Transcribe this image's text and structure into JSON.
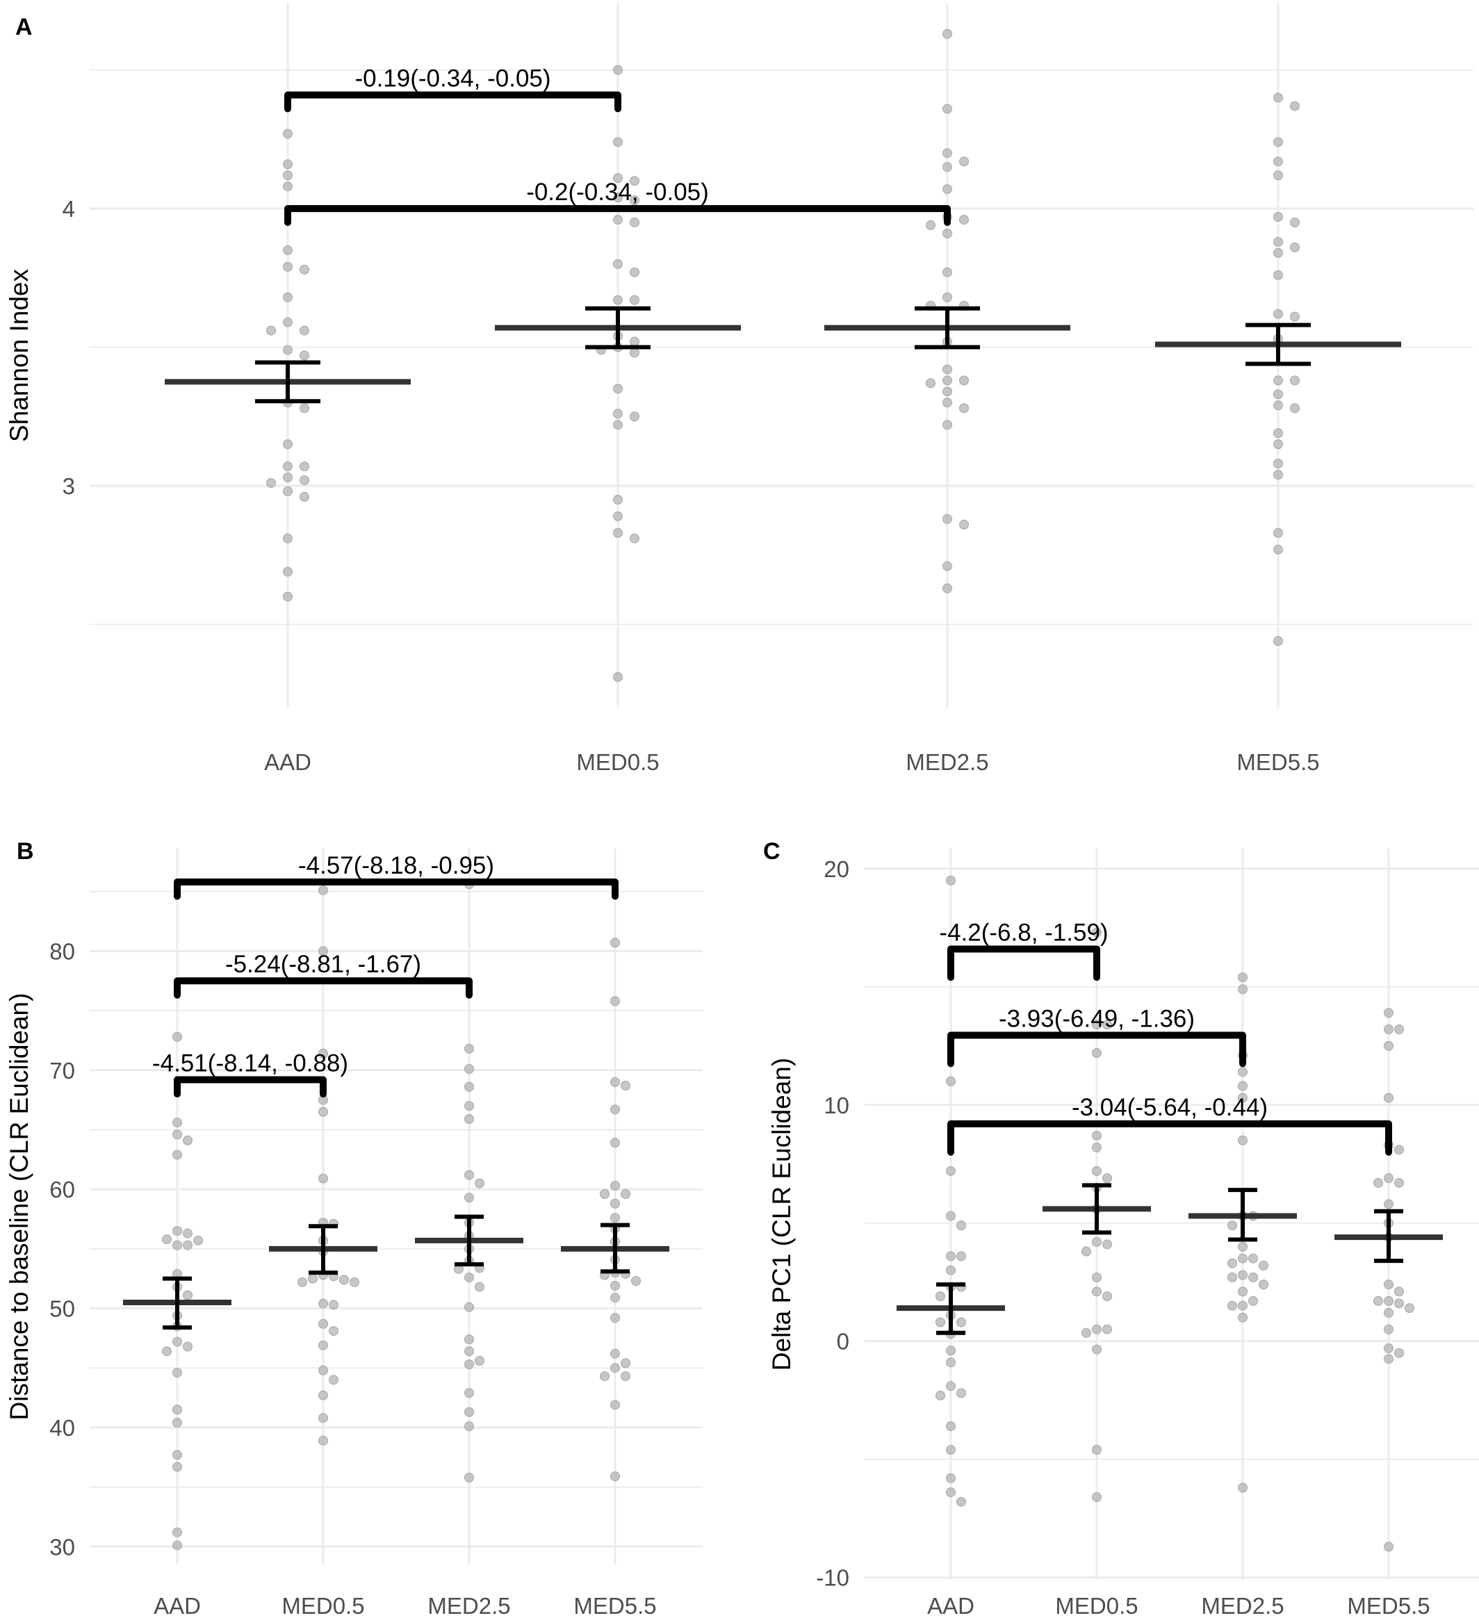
{
  "chart_data": [
    {
      "panel": "A",
      "type": "scatter",
      "ylabel": "Shannon Index",
      "categories": [
        "AAD",
        "MED0.5",
        "MED2.5",
        "MED5.5"
      ],
      "ylim": [
        2.2,
        4.74
      ],
      "yticks": [
        3,
        4
      ],
      "ygrid_minor": [
        2.5,
        3.5,
        4.5
      ],
      "grid": true,
      "point_color": "#b3b3b3",
      "groups": [
        {
          "category": "AAD",
          "mean": 3.375,
          "ci": [
            3.305,
            3.445
          ],
          "values": [
            4.27,
            4.16,
            4.12,
            4.08,
            3.85,
            3.79,
            3.78,
            3.68,
            3.59,
            3.56,
            3.56,
            3.49,
            3.47,
            3.3,
            3.28,
            3.15,
            3.07,
            3.07,
            3.03,
            3.02,
            3.01,
            2.98,
            2.96,
            2.81,
            2.69,
            2.6
          ]
        },
        {
          "category": "MED0.5",
          "mean": 3.57,
          "ci": [
            3.5,
            3.64
          ],
          "values": [
            4.5,
            4.24,
            4.11,
            4.1,
            4.04,
            4.03,
            3.96,
            3.95,
            3.8,
            3.77,
            3.67,
            3.67,
            3.54,
            3.52,
            3.5,
            3.49,
            3.48,
            3.35,
            3.26,
            3.25,
            3.22,
            2.95,
            2.89,
            2.83,
            2.81,
            2.31
          ]
        },
        {
          "category": "MED2.5",
          "mean": 3.57,
          "ci": [
            3.5,
            3.64
          ],
          "values": [
            4.63,
            4.36,
            4.2,
            4.17,
            4.15,
            4.07,
            3.97,
            3.96,
            3.94,
            3.91,
            3.77,
            3.68,
            3.65,
            3.65,
            3.52,
            3.42,
            3.38,
            3.38,
            3.37,
            3.34,
            3.3,
            3.28,
            3.22,
            2.88,
            2.86,
            2.71,
            2.63
          ]
        },
        {
          "category": "MED5.5",
          "mean": 3.51,
          "ci": [
            3.44,
            3.58
          ],
          "values": [
            4.4,
            4.37,
            4.24,
            4.17,
            4.12,
            3.97,
            3.95,
            3.88,
            3.86,
            3.84,
            3.76,
            3.62,
            3.61,
            3.53,
            3.38,
            3.38,
            3.33,
            3.29,
            3.28,
            3.19,
            3.15,
            3.08,
            3.04,
            2.83,
            2.77,
            2.44
          ]
        }
      ],
      "comparisons": [
        {
          "from": "AAD",
          "to": "MED0.5",
          "y": 4.41,
          "label": "-0.19(-0.34, -0.05)"
        },
        {
          "from": "AAD",
          "to": "MED2.5",
          "y": 4.0,
          "label": "-0.2(-0.34, -0.05)"
        }
      ]
    },
    {
      "panel": "B",
      "type": "scatter",
      "ylabel": "Distance to baseline (CLR Euclidean)",
      "categories": [
        "AAD",
        "MED0.5",
        "MED2.5",
        "MED5.5"
      ],
      "ylim": [
        28.5,
        88.6
      ],
      "yticks": [
        30,
        40,
        50,
        60,
        70,
        80
      ],
      "ygrid_minor": [
        35,
        45,
        55,
        65,
        75,
        85
      ],
      "grid": true,
      "point_color": "#b3b3b3",
      "groups": [
        {
          "category": "AAD",
          "mean": 50.5,
          "ci": [
            48.4,
            52.5
          ],
          "values": [
            72.8,
            65.6,
            64.6,
            64.1,
            62.9,
            56.5,
            56.3,
            55.8,
            55.7,
            55.3,
            55.3,
            52.9,
            51.8,
            51.1,
            49.4,
            48.5,
            47.2,
            46.8,
            46.4,
            44.6,
            41.5,
            40.4,
            37.7,
            36.7,
            31.2,
            30.1
          ]
        },
        {
          "category": "MED0.5",
          "mean": 55.0,
          "ci": [
            53.0,
            56.9
          ],
          "values": [
            85.1,
            80.0,
            71.4,
            67.5,
            66.5,
            60.9,
            57.2,
            57.1,
            55.7,
            54.8,
            52.8,
            52.7,
            52.5,
            52.4,
            52.2,
            52.2,
            50.4,
            50.3,
            48.7,
            48.1,
            46.9,
            44.8,
            44.0,
            42.7,
            40.8,
            38.9
          ]
        },
        {
          "category": "MED2.5",
          "mean": 55.7,
          "ci": [
            53.7,
            57.7
          ],
          "values": [
            85.6,
            71.8,
            70.1,
            68.6,
            67.0,
            65.9,
            61.2,
            60.5,
            59.3,
            57.2,
            56.1,
            55.0,
            54.0,
            53.4,
            53.3,
            52.6,
            51.8,
            50.1,
            47.4,
            46.4,
            45.6,
            45.3,
            42.9,
            41.3,
            40.1,
            35.8
          ]
        },
        {
          "category": "MED5.5",
          "mean": 55.0,
          "ci": [
            53.1,
            57.0
          ],
          "values": [
            80.7,
            75.8,
            69.0,
            68.7,
            66.7,
            63.9,
            60.3,
            59.6,
            59.6,
            58.8,
            57.6,
            56.7,
            55.6,
            54.1,
            53.0,
            52.9,
            52.8,
            52.3,
            51.9,
            50.9,
            49.2,
            46.2,
            45.4,
            45.0,
            44.3,
            44.3,
            41.9,
            35.9
          ]
        }
      ],
      "comparisons": [
        {
          "from": "AAD",
          "to": "MED5.5",
          "y": 85.8,
          "label": "-4.57(-8.18, -0.95)"
        },
        {
          "from": "AAD",
          "to": "MED2.5",
          "y": 77.5,
          "label": "-5.24(-8.81, -1.67)"
        },
        {
          "from": "AAD",
          "to": "MED0.5",
          "y": 69.2,
          "label": "-4.51(-8.14, -0.88)"
        }
      ]
    },
    {
      "panel": "C",
      "type": "scatter",
      "ylabel": "Delta PC1 (CLR Euclidean)",
      "categories": [
        "AAD",
        "MED0.5",
        "MED2.5",
        "MED5.5"
      ],
      "ylim": [
        -10.1,
        20.85
      ],
      "yticks": [
        -10,
        0,
        10,
        20
      ],
      "ygrid_minor": [
        -5,
        5,
        15
      ],
      "grid": true,
      "point_color": "#b3b3b3",
      "groups": [
        {
          "category": "AAD",
          "mean": 1.4,
          "ci": [
            0.35,
            2.4
          ],
          "values": [
            19.5,
            11.0,
            7.2,
            5.3,
            4.9,
            3.6,
            3.6,
            3.0,
            2.3,
            2.3,
            1.9,
            1.1,
            0.8,
            0.8,
            0.3,
            -0.4,
            -0.9,
            -1.9,
            -2.2,
            -2.3,
            -3.6,
            -4.6,
            -5.8,
            -6.4,
            -6.8
          ]
        },
        {
          "category": "MED0.5",
          "mean": 5.6,
          "ci": [
            4.6,
            6.6
          ],
          "values": [
            17.3,
            13.4,
            13.4,
            12.2,
            8.7,
            8.2,
            7.2,
            6.9,
            6.5,
            5.6,
            4.2,
            4.1,
            3.8,
            2.7,
            2.1,
            1.9,
            0.5,
            0.5,
            0.35,
            -0.35,
            -4.6,
            -6.6
          ]
        },
        {
          "category": "MED2.5",
          "mean": 5.3,
          "ci": [
            4.3,
            6.4
          ],
          "values": [
            15.4,
            14.9,
            12.1,
            11.4,
            10.8,
            10.3,
            8.5,
            5.3,
            5.3,
            4.9,
            4.0,
            3.5,
            3.5,
            3.3,
            3.2,
            2.8,
            2.7,
            2.7,
            2.4,
            2.1,
            1.7,
            1.5,
            1.5,
            1.0,
            -6.2
          ]
        },
        {
          "category": "MED5.5",
          "mean": 4.4,
          "ci": [
            3.4,
            5.5
          ],
          "values": [
            13.9,
            13.2,
            13.2,
            12.5,
            10.3,
            8.3,
            8.1,
            6.9,
            6.7,
            6.7,
            5.8,
            5.0,
            4.4,
            2.4,
            2.1,
            1.7,
            1.7,
            1.6,
            1.4,
            1.2,
            0.5,
            -0.3,
            -0.5,
            -0.75,
            -8.7
          ]
        }
      ],
      "comparisons": [
        {
          "from": "AAD",
          "to": "MED0.5",
          "y": 16.6,
          "label": "-4.2(-6.8, -1.59)"
        },
        {
          "from": "AAD",
          "to": "MED2.5",
          "y": 12.95,
          "label": "-3.93(-6.49, -1.36)"
        },
        {
          "from": "AAD",
          "to": "MED5.5",
          "y": 9.2,
          "label": "-3.04(-5.64, -0.44)"
        }
      ]
    }
  ]
}
